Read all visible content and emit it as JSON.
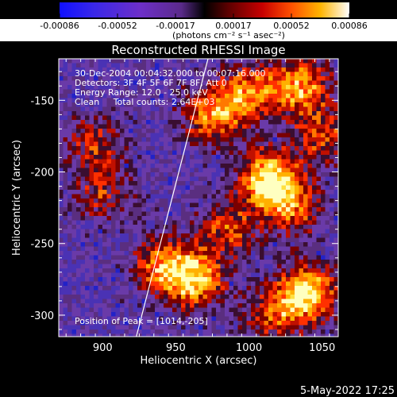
{
  "chart_data": {
    "type": "heatmap",
    "title": "Reconstructed RHESSI Image",
    "xlabel": "Heliocentric X (arcsec)",
    "ylabel": "Heliocentric Y (arcsec)",
    "xlim": [
      870,
      1061
    ],
    "ylim": [
      -315,
      -121
    ],
    "x_ticks": [
      900,
      950,
      1000,
      1050
    ],
    "y_ticks": [
      -150,
      -200,
      -250,
      -300
    ],
    "colorbar": {
      "label": "(photons cm⁻² s⁻¹ asec⁻²)",
      "min": -0.00086,
      "max": 0.00086,
      "ticks": [
        "-0.00086",
        "-0.00052",
        "-0.00017",
        "0.00017",
        "0.00052",
        "0.00086"
      ],
      "colormap": "rainbow-to-hot"
    },
    "annotations": [
      "30-Dec-2004 00:04:32.000 to 00:07:16.000",
      "Detectors: 3F 4F 5F 6F 7F 8F, Att 0",
      "Energy Range: 12.0 - 25.0 keV",
      "Clean     Total counts: 2.64E+03"
    ],
    "peak_label": "Position of Peak = [1014,-205]",
    "limb_line": {
      "x": [
        923,
        972
      ],
      "y": [
        -315,
        -121
      ]
    },
    "bright_regions": [
      {
        "x": 1014,
        "y": -205,
        "level": 1.0
      },
      {
        "x": 1040,
        "y": -285,
        "level": 0.95
      },
      {
        "x": 963,
        "y": -275,
        "level": 0.85
      },
      {
        "x": 940,
        "y": -265,
        "level": 0.6
      },
      {
        "x": 975,
        "y": -160,
        "level": 0.7
      },
      {
        "x": 1000,
        "y": -145,
        "level": 0.65
      },
      {
        "x": 1035,
        "y": -140,
        "level": 0.75
      },
      {
        "x": 1030,
        "y": -225,
        "level": 0.55
      },
      {
        "x": 985,
        "y": -240,
        "level": 0.5
      },
      {
        "x": 895,
        "y": -180,
        "level": 0.45
      },
      {
        "x": 1050,
        "y": -175,
        "level": 0.5
      },
      {
        "x": 900,
        "y": -215,
        "level": 0.4
      },
      {
        "x": 1015,
        "y": -300,
        "level": 0.5
      }
    ]
  },
  "footer": {
    "timestamp": "5-May-2022 17:25"
  }
}
